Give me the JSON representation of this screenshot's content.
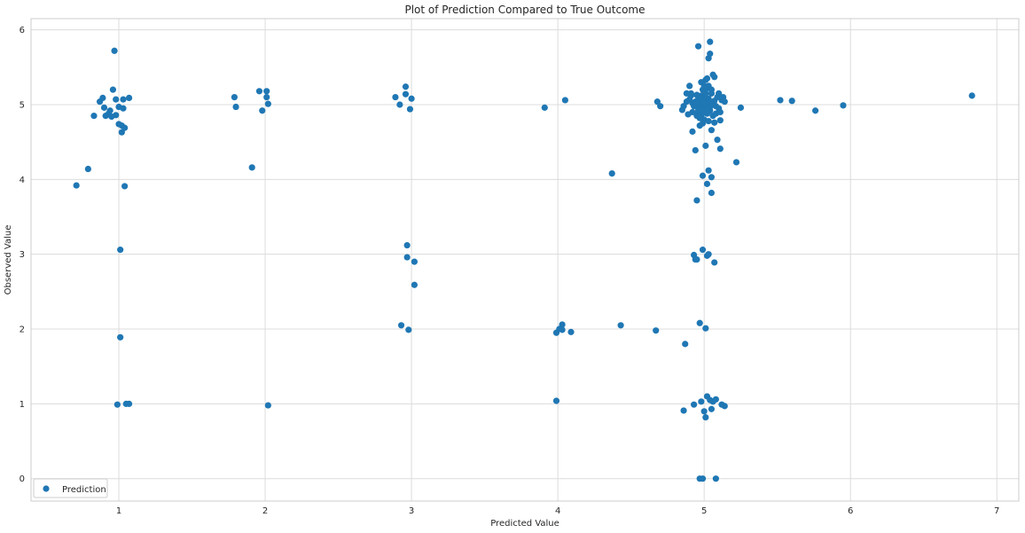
{
  "chart_data": {
    "type": "scatter",
    "title": "Plot of Prediction Compared to True Outcome",
    "xlabel": "Predicted Value",
    "ylabel": "Observed Value",
    "xlim": [
      0.4,
      7.15
    ],
    "ylim": [
      -0.3,
      6.15
    ],
    "xticks": [
      1,
      2,
      3,
      4,
      5,
      6,
      7
    ],
    "yticks": [
      0,
      1,
      2,
      3,
      4,
      5,
      6
    ],
    "grid": true,
    "legend_position": "lower-left",
    "series": [
      {
        "name": "Prediction",
        "color": "#1f77b4",
        "points": [
          [
            0.71,
            3.92
          ],
          [
            0.79,
            4.14
          ],
          [
            0.83,
            4.85
          ],
          [
            0.87,
            5.04
          ],
          [
            0.89,
            5.09
          ],
          [
            0.9,
            4.96
          ],
          [
            0.91,
            4.85
          ],
          [
            0.93,
            4.88
          ],
          [
            0.94,
            4.92
          ],
          [
            0.95,
            4.84
          ],
          [
            0.96,
            5.2
          ],
          [
            0.97,
            5.72
          ],
          [
            0.98,
            5.07
          ],
          [
            0.98,
            4.86
          ],
          [
            0.99,
            0.99
          ],
          [
            1.0,
            4.97
          ],
          [
            1.0,
            4.74
          ],
          [
            1.01,
            3.06
          ],
          [
            1.01,
            1.89
          ],
          [
            1.02,
            4.63
          ],
          [
            1.02,
            4.72
          ],
          [
            1.03,
            5.07
          ],
          [
            1.03,
            4.95
          ],
          [
            1.04,
            4.69
          ],
          [
            1.04,
            3.91
          ],
          [
            1.05,
            1.0
          ],
          [
            1.07,
            5.09
          ],
          [
            1.07,
            1.0
          ],
          [
            1.79,
            5.1
          ],
          [
            1.8,
            4.97
          ],
          [
            1.91,
            4.16
          ],
          [
            1.96,
            5.18
          ],
          [
            1.98,
            4.92
          ],
          [
            2.01,
            5.18
          ],
          [
            2.01,
            5.1
          ],
          [
            2.02,
            5.01
          ],
          [
            2.02,
            0.98
          ],
          [
            2.89,
            5.1
          ],
          [
            2.92,
            5.0
          ],
          [
            2.93,
            2.05
          ],
          [
            2.96,
            5.24
          ],
          [
            2.96,
            5.14
          ],
          [
            2.97,
            3.12
          ],
          [
            2.97,
            2.96
          ],
          [
            2.98,
            1.99
          ],
          [
            2.99,
            4.94
          ],
          [
            3.0,
            5.08
          ],
          [
            3.02,
            2.9
          ],
          [
            3.02,
            2.59
          ],
          [
            3.91,
            4.96
          ],
          [
            3.99,
            1.04
          ],
          [
            3.99,
            1.95
          ],
          [
            4.01,
            2.0
          ],
          [
            4.03,
            2.06
          ],
          [
            4.03,
            1.99
          ],
          [
            4.05,
            5.06
          ],
          [
            4.09,
            1.96
          ],
          [
            4.37,
            4.08
          ],
          [
            4.43,
            2.05
          ],
          [
            4.67,
            1.98
          ],
          [
            4.68,
            5.04
          ],
          [
            4.7,
            4.98
          ],
          [
            4.85,
            4.93
          ],
          [
            4.86,
            4.98
          ],
          [
            4.86,
            0.91
          ],
          [
            4.87,
            1.8
          ],
          [
            4.88,
            5.15
          ],
          [
            4.89,
            4.87
          ],
          [
            4.9,
            5.25
          ],
          [
            4.91,
            5.15
          ],
          [
            4.92,
            4.64
          ],
          [
            4.92,
            5.02
          ],
          [
            4.93,
            2.99
          ],
          [
            4.93,
            0.99
          ],
          [
            4.94,
            2.93
          ],
          [
            4.94,
            4.39
          ],
          [
            4.95,
            3.72
          ],
          [
            4.95,
            2.93
          ],
          [
            4.96,
            5.78
          ],
          [
            4.96,
            5.05
          ],
          [
            4.96,
            4.9
          ],
          [
            4.97,
            2.08
          ],
          [
            4.97,
            4.72
          ],
          [
            4.97,
            0.0
          ],
          [
            4.98,
            1.03
          ],
          [
            4.98,
            5.12
          ],
          [
            4.99,
            3.06
          ],
          [
            4.99,
            4.05
          ],
          [
            4.99,
            0.0
          ],
          [
            5.0,
            0.9
          ],
          [
            5.0,
            4.95
          ],
          [
            5.01,
            2.01
          ],
          [
            5.01,
            0.82
          ],
          [
            5.01,
            4.45
          ],
          [
            5.01,
            5.33
          ],
          [
            5.02,
            5.22
          ],
          [
            5.02,
            1.1
          ],
          [
            5.02,
            2.98
          ],
          [
            5.02,
            3.94
          ],
          [
            5.03,
            3.0
          ],
          [
            5.03,
            4.12
          ],
          [
            5.03,
            5.62
          ],
          [
            5.04,
            5.84
          ],
          [
            5.04,
            5.68
          ],
          [
            5.04,
            1.05
          ],
          [
            5.04,
            4.97
          ],
          [
            5.05,
            4.03
          ],
          [
            5.05,
            3.82
          ],
          [
            5.05,
            4.66
          ],
          [
            5.05,
            0.93
          ],
          [
            5.06,
            5.4
          ],
          [
            5.06,
            1.03
          ],
          [
            5.07,
            5.37
          ],
          [
            5.07,
            2.89
          ],
          [
            5.07,
            4.76
          ],
          [
            5.08,
            0.0
          ],
          [
            5.08,
            1.06
          ],
          [
            5.09,
            4.53
          ],
          [
            5.1,
            5.15
          ],
          [
            5.11,
            4.41
          ],
          [
            5.11,
            4.79
          ],
          [
            5.12,
            0.99
          ],
          [
            5.13,
            5.1
          ],
          [
            5.14,
            5.04
          ],
          [
            5.14,
            0.97
          ],
          [
            5.22,
            4.23
          ],
          [
            5.25,
            4.96
          ],
          [
            5.52,
            5.06
          ],
          [
            5.6,
            5.05
          ],
          [
            5.76,
            4.92
          ],
          [
            5.95,
            4.99
          ],
          [
            6.83,
            5.12
          ],
          [
            4.95,
            5.0
          ],
          [
            4.97,
            5.05
          ],
          [
            4.98,
            4.95
          ],
          [
            5.0,
            5.1
          ],
          [
            5.01,
            4.98
          ],
          [
            5.02,
            5.02
          ],
          [
            5.03,
            5.08
          ],
          [
            5.0,
            4.9
          ],
          [
            4.96,
            5.1
          ],
          [
            5.04,
            4.92
          ],
          [
            4.99,
            5.2
          ],
          [
            5.01,
            5.15
          ],
          [
            5.06,
            5.0
          ],
          [
            4.94,
            5.04
          ],
          [
            5.05,
            5.15
          ],
          [
            4.98,
            4.85
          ],
          [
            5.0,
            4.8
          ],
          [
            5.02,
            4.88
          ],
          [
            4.97,
            4.96
          ],
          [
            5.03,
            5.25
          ],
          [
            4.95,
            5.13
          ],
          [
            5.07,
            5.05
          ],
          [
            4.93,
            4.98
          ],
          [
            5.08,
            4.98
          ],
          [
            5.01,
            5.06
          ],
          [
            4.99,
            5.0
          ],
          [
            5.0,
            5.02
          ],
          [
            5.02,
            4.95
          ],
          [
            4.96,
            4.93
          ],
          [
            5.04,
            5.04
          ],
          [
            4.9,
            5.07
          ],
          [
            5.09,
            5.1
          ],
          [
            5.1,
            4.95
          ],
          [
            4.92,
            4.9
          ],
          [
            5.06,
            4.85
          ],
          [
            4.98,
            5.3
          ],
          [
            5.0,
            5.25
          ],
          [
            5.03,
            4.78
          ],
          [
            4.97,
            4.82
          ],
          [
            5.12,
            5.06
          ],
          [
            4.88,
            5.04
          ],
          [
            5.11,
            4.9
          ],
          [
            4.99,
            4.75
          ],
          [
            5.02,
            5.35
          ],
          [
            4.95,
            4.85
          ],
          [
            5.05,
            5.2
          ],
          [
            4.91,
            5.12
          ],
          [
            5.08,
            4.88
          ]
        ]
      }
    ]
  }
}
